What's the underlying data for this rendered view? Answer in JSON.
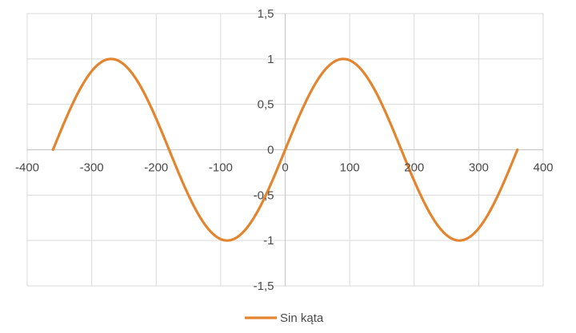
{
  "chart_data": {
    "type": "line",
    "title": "",
    "xlabel": "",
    "ylabel": "",
    "xlim": [
      -400,
      400
    ],
    "ylim": [
      -1.5,
      1.5
    ],
    "x_ticks": [
      -400,
      -300,
      -200,
      -100,
      0,
      100,
      200,
      300,
      400
    ],
    "x_tick_labels": [
      "-400",
      "-300",
      "-200",
      "-100",
      "0",
      "100",
      "200",
      "300",
      "400"
    ],
    "y_ticks": [
      -1.5,
      -1,
      -0.5,
      0,
      0.5,
      1,
      1.5
    ],
    "y_tick_labels": [
      "-1,5",
      "-1",
      "-0,5",
      "0",
      "0,5",
      "1",
      "1,5"
    ],
    "grid": true,
    "legend": "bottom",
    "colors": {
      "series": "#e3852f",
      "grid": "#d9d9d9",
      "axis": "#c8c8c8",
      "text": "#4a4a4a"
    },
    "series": [
      {
        "name": "Sin kąta",
        "function": "sin(x degrees)",
        "x_range": [
          -360,
          360
        ],
        "x": [
          -360,
          -330,
          -300,
          -270,
          -240,
          -210,
          -180,
          -150,
          -120,
          -90,
          -60,
          -30,
          0,
          30,
          60,
          90,
          120,
          150,
          180,
          210,
          240,
          270,
          300,
          330,
          360
        ],
        "y": [
          0,
          0.5,
          0.866,
          1,
          0.866,
          0.5,
          0,
          -0.5,
          -0.866,
          -1,
          -0.866,
          -0.5,
          0,
          0.5,
          0.866,
          1,
          0.866,
          0.5,
          0,
          -0.5,
          -0.866,
          -1,
          -0.866,
          -0.5,
          0
        ]
      }
    ]
  }
}
